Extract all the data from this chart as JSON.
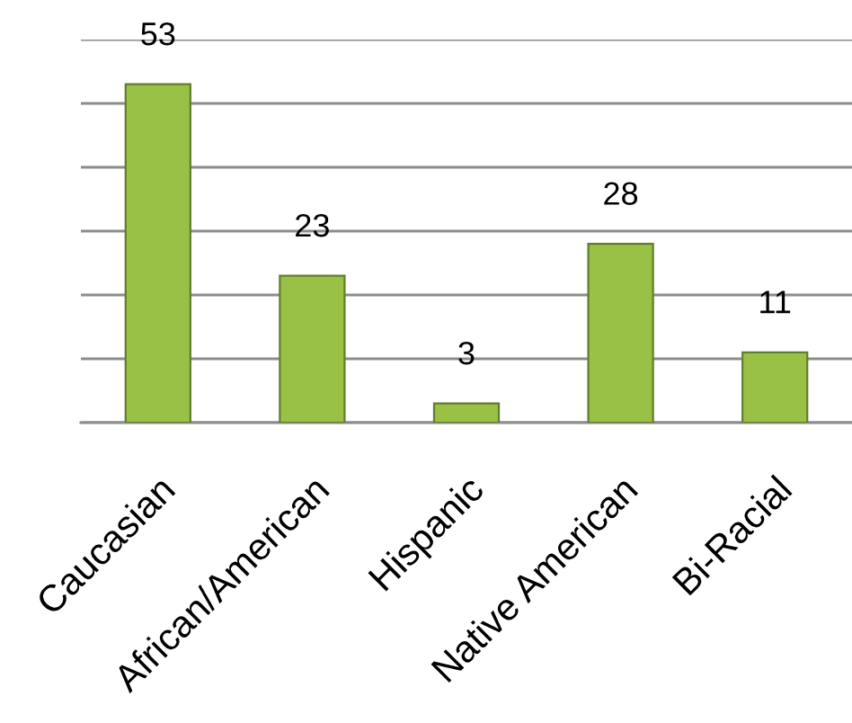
{
  "chart_data": {
    "type": "bar",
    "categories": [
      "Caucasian",
      "African/American",
      "Hispanic",
      "Native American",
      "Bi-Racial"
    ],
    "values": [
      53,
      23,
      3,
      28,
      11
    ],
    "color": "#98c146",
    "ylim": [
      0,
      60
    ],
    "yticks": [
      {
        "value": 0,
        "label": null
      },
      {
        "value": 10,
        "label": null
      },
      {
        "value": 20,
        "label": null
      },
      {
        "value": 30,
        "label": null
      },
      {
        "value": 40,
        "label": null
      },
      {
        "value": 50,
        "label": null
      },
      {
        "value": 60,
        "label": null
      }
    ],
    "grid": "y",
    "tick_labels": "x",
    "data_labels": true
  }
}
